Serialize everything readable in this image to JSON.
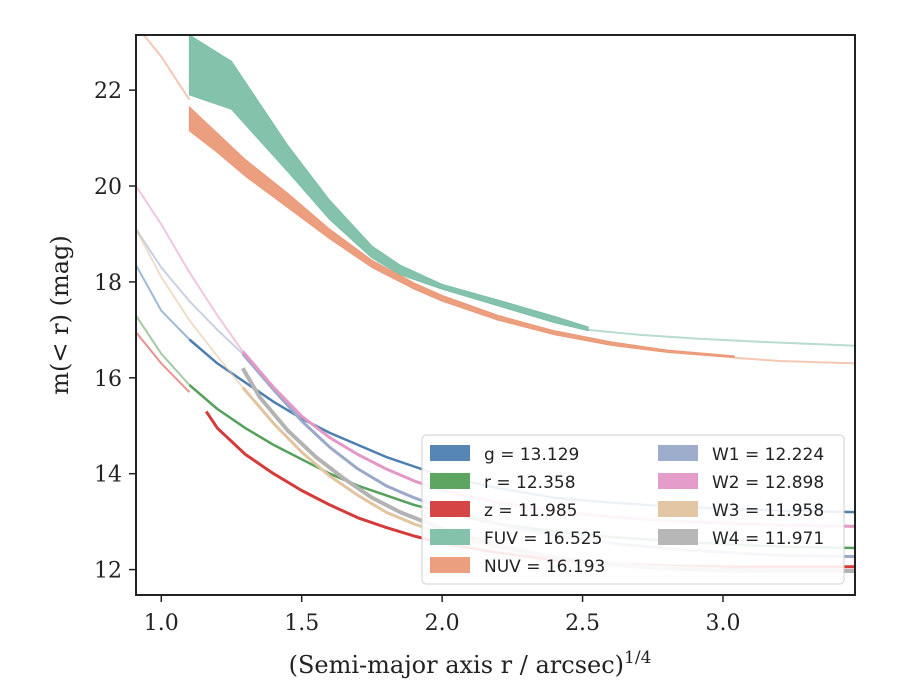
{
  "chart_data": {
    "type": "line",
    "xlabel": "(Semi-major axis r / arcsec)",
    "xlabel_exp": "1/4",
    "ylabel": "m(< r) (mag)",
    "xlim": [
      0.91,
      3.47
    ],
    "ylim": [
      23.15,
      11.47
    ],
    "y_inverted": true,
    "grid": false,
    "legend_position": "lower-right",
    "xticks": [
      "1.0",
      "1.5",
      "2.0",
      "2.5",
      "3.0"
    ],
    "yticks": [
      "12",
      "14",
      "16",
      "18",
      "20",
      "22"
    ],
    "series": [
      {
        "key": "g",
        "label": "g = 13.129",
        "color": "#4c7fb0",
        "faint": [
          [
            0.91,
            18.35
          ],
          [
            1.0,
            17.4
          ],
          [
            1.1,
            16.8
          ]
        ],
        "x": [
          1.1,
          1.2,
          1.3,
          1.4,
          1.5,
          1.6,
          1.7,
          1.8,
          1.9,
          2.0,
          2.2,
          2.4,
          2.6,
          2.8,
          3.0,
          3.2,
          3.47
        ],
        "y": [
          16.8,
          16.3,
          15.9,
          15.5,
          15.15,
          14.85,
          14.6,
          14.35,
          14.15,
          13.95,
          13.7,
          13.5,
          13.4,
          13.32,
          13.27,
          13.23,
          13.2
        ],
        "width": 2.5
      },
      {
        "key": "r",
        "label": "r = 12.358",
        "color": "#55a05a",
        "faint": [
          [
            0.91,
            17.3
          ],
          [
            1.0,
            16.5
          ],
          [
            1.1,
            15.85
          ]
        ],
        "x": [
          1.1,
          1.2,
          1.3,
          1.4,
          1.5,
          1.6,
          1.7,
          1.8,
          1.9,
          2.0,
          2.2,
          2.4,
          2.6,
          2.8,
          3.0,
          3.2,
          3.47
        ],
        "y": [
          15.85,
          15.35,
          14.95,
          14.6,
          14.3,
          14.0,
          13.75,
          13.55,
          13.35,
          13.2,
          12.95,
          12.8,
          12.68,
          12.6,
          12.53,
          12.48,
          12.45
        ],
        "width": 2.5
      },
      {
        "key": "z",
        "label": "z = 11.985",
        "color": "#d43b3b",
        "faint": [
          [
            0.91,
            16.95
          ],
          [
            1.0,
            16.3
          ],
          [
            1.1,
            15.7
          ]
        ],
        "x": [
          1.16,
          1.2,
          1.3,
          1.4,
          1.5,
          1.6,
          1.7,
          1.8,
          1.9,
          2.0,
          2.2,
          2.4,
          2.6,
          2.8,
          3.0,
          3.2,
          3.47
        ],
        "y": [
          15.3,
          14.95,
          14.4,
          14.0,
          13.65,
          13.35,
          13.08,
          12.88,
          12.7,
          12.55,
          12.35,
          12.2,
          12.12,
          12.08,
          12.06,
          12.06,
          12.06
        ],
        "width": 3
      },
      {
        "key": "FUV",
        "label": "FUV = 16.525",
        "color": "#7dbfa8",
        "faint": [
          [
            2.52,
            17.0
          ],
          [
            2.7,
            16.9
          ],
          [
            2.9,
            16.82
          ],
          [
            3.1,
            16.76
          ],
          [
            3.3,
            16.71
          ],
          [
            3.47,
            16.67
          ]
        ],
        "x": [
          1.1,
          1.25,
          1.45,
          1.6,
          1.75,
          1.85,
          2.0,
          2.2,
          2.4,
          2.52
        ],
        "y_top": [
          21.9,
          21.6,
          20.3,
          19.3,
          18.5,
          18.15,
          17.85,
          17.5,
          17.15,
          16.98
        ],
        "y_bottom": [
          23.15,
          22.6,
          20.85,
          19.7,
          18.75,
          18.35,
          17.95,
          17.62,
          17.28,
          17.06
        ],
        "band": true
      },
      {
        "key": "NUV",
        "label": "NUV = 16.193",
        "color": "#eb9a78",
        "faint": [
          [
            0.91,
            23.35
          ],
          [
            1.0,
            22.7
          ],
          [
            1.1,
            21.8
          ]
        ],
        "faint_end": [
          [
            3.04,
            16.42
          ],
          [
            3.2,
            16.35
          ],
          [
            3.47,
            16.3
          ]
        ],
        "x": [
          1.1,
          1.2,
          1.3,
          1.45,
          1.6,
          1.75,
          1.9,
          2.0,
          2.2,
          2.4,
          2.6,
          2.8,
          3.04
        ],
        "y_top": [
          21.15,
          20.7,
          20.2,
          19.55,
          18.9,
          18.3,
          17.85,
          17.6,
          17.2,
          16.9,
          16.68,
          16.53,
          16.42
        ],
        "y_bottom": [
          21.65,
          21.1,
          20.55,
          19.85,
          19.1,
          18.45,
          17.98,
          17.72,
          17.3,
          16.98,
          16.75,
          16.58,
          16.46
        ],
        "band": true
      },
      {
        "key": "W1",
        "label": "W1 = 12.224",
        "color": "#9aa9c9",
        "faint": [
          [
            0.91,
            19.1
          ],
          [
            1.0,
            18.3
          ],
          [
            1.1,
            17.6
          ],
          [
            1.2,
            17.0
          ],
          [
            1.29,
            16.5
          ]
        ],
        "x": [
          1.29,
          1.4,
          1.5,
          1.6,
          1.7,
          1.8,
          1.9,
          2.0,
          2.2,
          2.4,
          2.6,
          2.8,
          3.0,
          3.2,
          3.47
        ],
        "y": [
          16.5,
          15.75,
          15.1,
          14.55,
          14.1,
          13.75,
          13.5,
          13.28,
          12.95,
          12.72,
          12.55,
          12.44,
          12.36,
          12.3,
          12.27
        ],
        "width": 3
      },
      {
        "key": "W2",
        "label": "W2 = 12.898",
        "color": "#e398c8",
        "faint": [
          [
            0.91,
            20.0
          ],
          [
            1.0,
            19.2
          ],
          [
            1.1,
            18.2
          ],
          [
            1.2,
            17.3
          ],
          [
            1.29,
            16.55
          ]
        ],
        "x": [
          1.29,
          1.4,
          1.5,
          1.6,
          1.7,
          1.8,
          1.9,
          2.0,
          2.2,
          2.4,
          2.6,
          2.8,
          3.0,
          3.2,
          3.47
        ],
        "y": [
          16.55,
          15.8,
          15.2,
          14.75,
          14.4,
          14.1,
          13.85,
          13.65,
          13.4,
          13.22,
          13.1,
          13.02,
          12.97,
          12.93,
          12.9
        ],
        "width": 3
      },
      {
        "key": "W3",
        "label": "W3 = 11.958",
        "color": "#e2c49f",
        "faint": [
          [
            0.91,
            19.1
          ],
          [
            1.0,
            18.1
          ],
          [
            1.1,
            17.2
          ],
          [
            1.2,
            16.45
          ],
          [
            1.29,
            15.8
          ]
        ],
        "x": [
          1.29,
          1.4,
          1.5,
          1.6,
          1.7,
          1.8,
          1.9,
          2.0,
          2.2,
          2.4,
          2.6,
          2.8,
          3.0,
          3.2,
          3.47
        ],
        "y": [
          15.8,
          15.05,
          14.45,
          13.95,
          13.55,
          13.2,
          12.95,
          12.75,
          12.45,
          12.25,
          12.12,
          12.05,
          12.01,
          11.98,
          11.96
        ],
        "width": 3
      },
      {
        "key": "W4",
        "label": "W4 = 11.971",
        "color": "#b3b3b3",
        "x": [
          1.29,
          1.35,
          1.45,
          1.55,
          1.65,
          1.75,
          1.85,
          2.0,
          2.2,
          2.4,
          2.6,
          2.8,
          3.0,
          3.2,
          3.47
        ],
        "y": [
          16.2,
          15.6,
          14.9,
          14.35,
          13.9,
          13.5,
          13.2,
          12.85,
          12.5,
          12.25,
          12.1,
          12.02,
          11.98,
          11.97,
          11.97
        ],
        "width": 4
      }
    ]
  }
}
